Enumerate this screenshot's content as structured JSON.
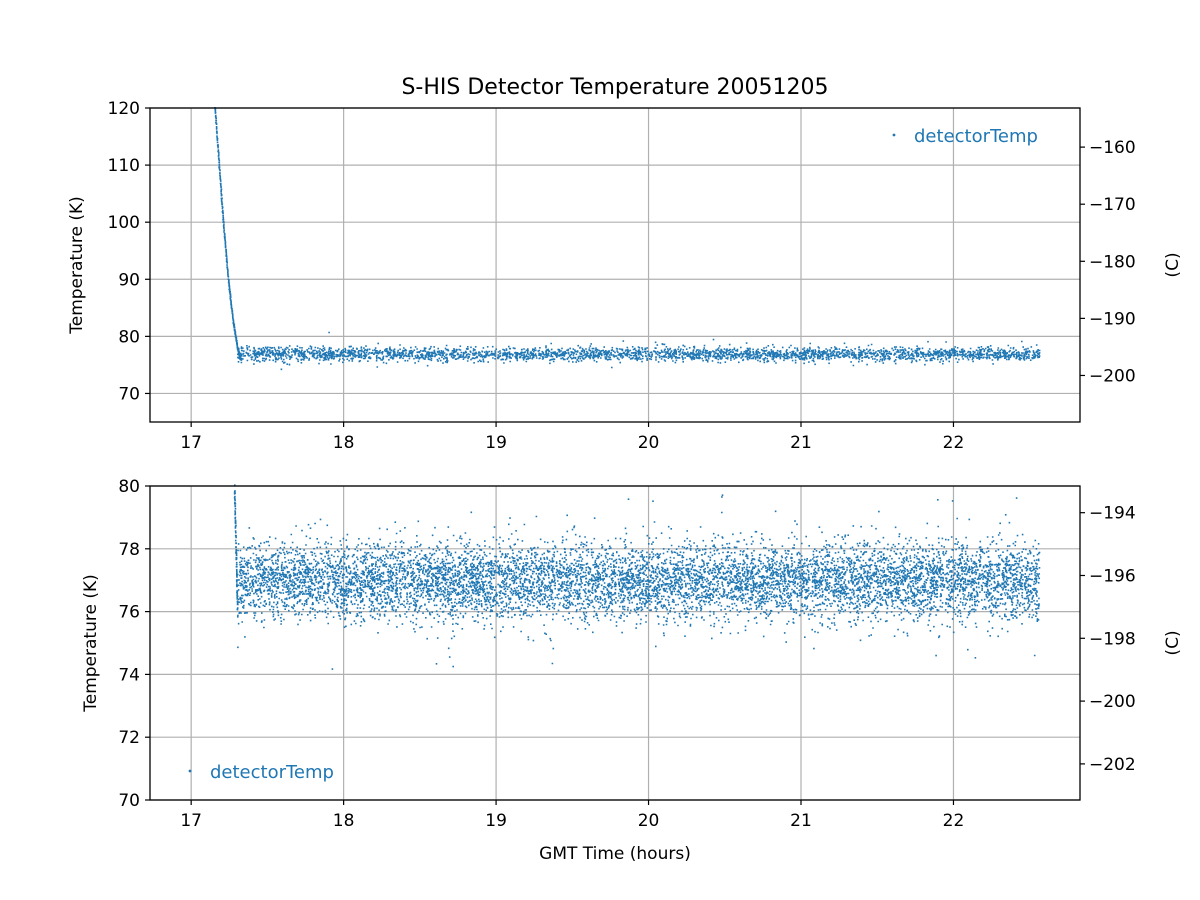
{
  "chart_data": [
    {
      "type": "scatter",
      "title": "S-HIS Detector Temperature 20051205",
      "xlabel": "",
      "ylabel": "Temperature (K)",
      "ylabel_right": "(C)",
      "xlim": [
        16.73,
        22.83
      ],
      "ylim": [
        65,
        120
      ],
      "ylim_right": [
        -208.15,
        -153.15
      ],
      "xticks": [
        "17",
        "18",
        "19",
        "20",
        "21",
        "22"
      ],
      "yticks": [
        "70",
        "80",
        "90",
        "100",
        "110",
        "120"
      ],
      "yticks_right": [
        "−160",
        "−170",
        "−180",
        "−190",
        "−200"
      ],
      "grid": true,
      "legend": {
        "position": "top-right",
        "entries": [
          "detectorTemp"
        ]
      },
      "series": [
        {
          "name": "detectorTemp",
          "color": "#1f77b4",
          "cooldown_x": [
            17.15,
            17.18,
            17.21,
            17.24,
            17.27,
            17.3,
            17.32
          ],
          "cooldown_y": [
            121,
            110,
            99,
            90,
            83,
            78,
            76
          ],
          "steady_x_range": [
            17.3,
            22.56
          ],
          "steady_mean": 77.0,
          "steady_spread": 0.6
        }
      ]
    },
    {
      "type": "scatter",
      "title": "",
      "xlabel": "GMT Time (hours)",
      "ylabel": "Temperature (K)",
      "ylabel_right": "(C)",
      "xlim": [
        16.73,
        22.83
      ],
      "ylim": [
        70,
        80
      ],
      "ylim_right": [
        -203.15,
        -193.15
      ],
      "xticks": [
        "17",
        "18",
        "19",
        "20",
        "21",
        "22"
      ],
      "yticks": [
        "70",
        "72",
        "74",
        "76",
        "78",
        "80"
      ],
      "yticks_right": [
        "−194",
        "−196",
        "−198",
        "−200",
        "−202"
      ],
      "grid": true,
      "legend": {
        "position": "bottom-left",
        "entries": [
          "detectorTemp"
        ]
      },
      "series": [
        {
          "name": "detectorTemp",
          "color": "#1f77b4",
          "cooldown_x": [
            17.28,
            17.29,
            17.3
          ],
          "cooldown_y": [
            80,
            78,
            76
          ],
          "steady_x_range": [
            17.3,
            22.56
          ],
          "steady_mean": 77.0,
          "steady_spread": 0.6
        }
      ]
    }
  ]
}
